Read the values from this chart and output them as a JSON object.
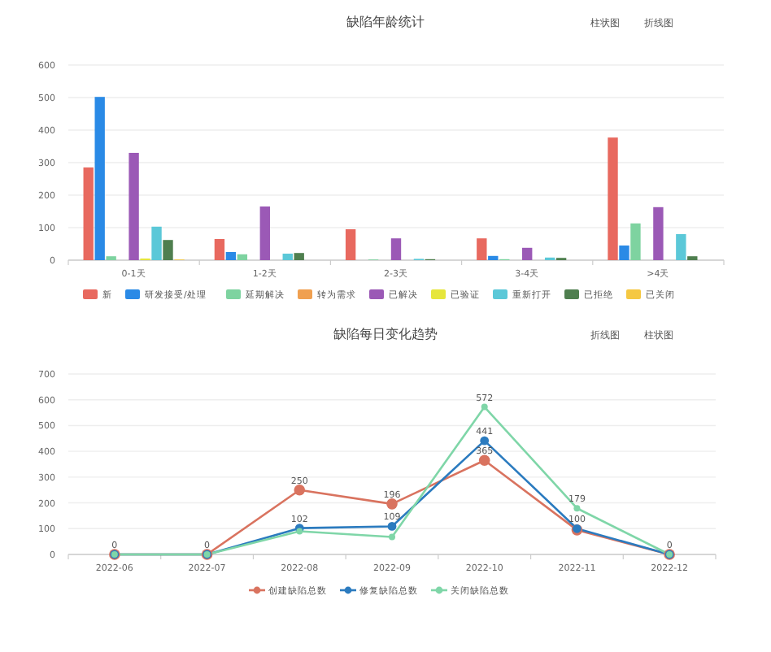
{
  "chart_data": [
    {
      "type": "bar",
      "title": "缺陷年龄统计",
      "annotations": [
        "柱状图",
        "折线图"
      ],
      "categories": [
        "0-1天",
        "1-2天",
        "2-3天",
        "3-4天",
        ">4天"
      ],
      "series": [
        {
          "name": "新",
          "color": "#e8695f",
          "values": [
            285,
            65,
            95,
            67,
            377
          ]
        },
        {
          "name": "研发接受/处理",
          "color": "#2a8ae6",
          "values": [
            502,
            25,
            0,
            13,
            45
          ]
        },
        {
          "name": "延期解决",
          "color": "#7ed3a0",
          "values": [
            12,
            18,
            2,
            3,
            113
          ]
        },
        {
          "name": "转为需求",
          "color": "#f0a050",
          "values": [
            0,
            0,
            0,
            0,
            0
          ]
        },
        {
          "name": "已解决",
          "color": "#9b59b6",
          "values": [
            330,
            165,
            67,
            38,
            163
          ]
        },
        {
          "name": "已验证",
          "color": "#e6e63c",
          "values": [
            5,
            0,
            0,
            0,
            0
          ]
        },
        {
          "name": "重新打开",
          "color": "#5bc8d8",
          "values": [
            103,
            20,
            4,
            8,
            80
          ]
        },
        {
          "name": "已拒绝",
          "color": "#4f7f4f",
          "values": [
            62,
            22,
            3,
            7,
            12
          ]
        },
        {
          "name": "已关闭",
          "color": "#f5c842",
          "values": [
            2,
            0,
            0,
            0,
            0
          ]
        }
      ],
      "ylim": [
        0,
        600
      ],
      "yticks": [
        0,
        100,
        200,
        300,
        400,
        500,
        600
      ],
      "grid": "y",
      "legend": "bottom"
    },
    {
      "type": "line",
      "title": "缺陷每日变化趋势",
      "annotations": [
        "折线图",
        "柱状图"
      ],
      "categories": [
        "2022-06",
        "2022-07",
        "2022-08",
        "2022-09",
        "2022-10",
        "2022-11",
        "2022-12"
      ],
      "series": [
        {
          "name": "创建缺陷总数",
          "color": "#d9735f",
          "values": [
            0,
            0,
            250,
            196,
            365,
            95,
            0
          ],
          "value_labels": [
            null,
            null,
            "250",
            "196",
            "365",
            null,
            null
          ]
        },
        {
          "name": "修复缺陷总数",
          "color": "#2b7bbf",
          "values": [
            0,
            0,
            102,
            109,
            441,
            100,
            0
          ],
          "value_labels": [
            null,
            null,
            "102",
            "109",
            "441",
            "100",
            null
          ]
        },
        {
          "name": "关闭缺陷总数",
          "color": "#7fd6a8",
          "values": [
            0,
            0,
            90,
            68,
            572,
            179,
            0
          ],
          "value_labels": [
            "0",
            "0",
            null,
            null,
            "572",
            "179",
            "0"
          ]
        }
      ],
      "ylim": [
        0,
        700
      ],
      "yticks": [
        0,
        100,
        200,
        300,
        400,
        500,
        600,
        700
      ],
      "grid": "y",
      "legend": "bottom",
      "marker": "circle"
    }
  ]
}
